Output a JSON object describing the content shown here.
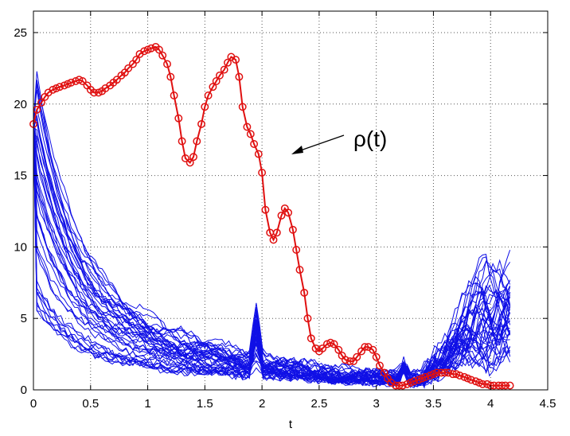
{
  "chart_data": {
    "type": "line",
    "title": "",
    "xlabel": "t",
    "ylabel": "",
    "xlim": [
      0,
      4.5
    ],
    "ylim": [
      0,
      26.5
    ],
    "xticks": [
      0,
      0.5,
      1,
      1.5,
      2,
      2.5,
      3,
      3.5,
      4,
      4.5
    ],
    "yticks": [
      0,
      5,
      10,
      15,
      20,
      25
    ],
    "xtick_labels": [
      "0",
      "0.5",
      "1",
      "1.5",
      "2",
      "2.5",
      "3",
      "3.5",
      "4",
      "4.5"
    ],
    "ytick_labels": [
      "0",
      "5",
      "10",
      "15",
      "20",
      "25"
    ],
    "grid": true,
    "annotation": {
      "text": "ρ(t)",
      "points_to": [
        2.24,
        16.3
      ]
    },
    "colors": {
      "rho": "#e01010",
      "samples": "#1010e6",
      "grid": "#555555"
    },
    "rho_series": {
      "name": "ρ(t)",
      "x": [
        0.0,
        0.03,
        0.07,
        0.1,
        0.13,
        0.17,
        0.2,
        0.23,
        0.27,
        0.3,
        0.33,
        0.37,
        0.4,
        0.43,
        0.47,
        0.5,
        0.53,
        0.57,
        0.6,
        0.63,
        0.67,
        0.7,
        0.73,
        0.77,
        0.8,
        0.83,
        0.87,
        0.9,
        0.93,
        0.97,
        1.0,
        1.03,
        1.07,
        1.1,
        1.13,
        1.17,
        1.2,
        1.23,
        1.27,
        1.3,
        1.33,
        1.37,
        1.4,
        1.43,
        1.47,
        1.5,
        1.53,
        1.57,
        1.6,
        1.63,
        1.67,
        1.7,
        1.73,
        1.77,
        1.8,
        1.83,
        1.87,
        1.9,
        1.93,
        1.97,
        2.0,
        2.03,
        2.07,
        2.1,
        2.13,
        2.17,
        2.2,
        2.23,
        2.27,
        2.3,
        2.33,
        2.37,
        2.4,
        2.43,
        2.47,
        2.5,
        2.53,
        2.57,
        2.6,
        2.63,
        2.67,
        2.7,
        2.73,
        2.77,
        2.8,
        2.83,
        2.87,
        2.9,
        2.93,
        2.97,
        3.0,
        3.03,
        3.07,
        3.1,
        3.13,
        3.17,
        3.2,
        3.23,
        3.27,
        3.3,
        3.33,
        3.37,
        3.4,
        3.43,
        3.47,
        3.5,
        3.53,
        3.57,
        3.6,
        3.63,
        3.67,
        3.7,
        3.73,
        3.77,
        3.8,
        3.83,
        3.87,
        3.9,
        3.93,
        3.97,
        4.0,
        4.03,
        4.07,
        4.1,
        4.13,
        4.17
      ],
      "y": [
        18.6,
        19.6,
        20.1,
        20.5,
        20.8,
        21.0,
        21.1,
        21.2,
        21.3,
        21.4,
        21.5,
        21.6,
        21.7,
        21.6,
        21.3,
        21.0,
        20.8,
        20.8,
        20.9,
        21.1,
        21.3,
        21.5,
        21.7,
        22.0,
        22.2,
        22.5,
        22.8,
        23.1,
        23.5,
        23.7,
        23.8,
        23.9,
        24.0,
        23.8,
        23.4,
        22.8,
        21.9,
        20.6,
        19.0,
        17.4,
        16.2,
        15.9,
        16.3,
        17.4,
        18.6,
        19.8,
        20.6,
        21.2,
        21.6,
        22.0,
        22.4,
        22.9,
        23.3,
        23.1,
        21.9,
        19.8,
        18.4,
        17.9,
        17.2,
        16.5,
        15.2,
        12.6,
        11.0,
        10.5,
        11.0,
        12.2,
        12.7,
        12.4,
        11.2,
        9.8,
        8.4,
        6.8,
        5.0,
        3.6,
        2.9,
        2.7,
        2.9,
        3.2,
        3.3,
        3.2,
        2.8,
        2.4,
        2.1,
        2.0,
        2.0,
        2.3,
        2.7,
        3.0,
        3.0,
        2.8,
        2.3,
        1.7,
        1.2,
        0.8,
        0.5,
        0.3,
        0.3,
        0.3,
        0.4,
        0.5,
        0.6,
        0.7,
        0.8,
        0.9,
        1.0,
        1.1,
        1.2,
        1.2,
        1.2,
        1.2,
        1.1,
        1.1,
        1.0,
        0.9,
        0.8,
        0.7,
        0.6,
        0.5,
        0.4,
        0.4,
        0.3,
        0.3,
        0.3,
        0.3,
        0.3,
        0.3
      ]
    }
  }
}
